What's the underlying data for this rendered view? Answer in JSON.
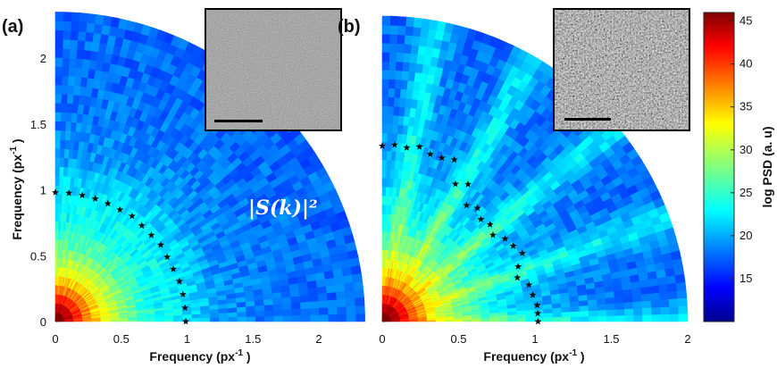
{
  "chart_data": [
    {
      "type": "heatmap",
      "panel_label": "(a)",
      "xlabel": "Frequency (px",
      "ylabel": "Frequency (px",
      "xticks": [
        "0",
        "0.5",
        "1",
        "1.5",
        "2"
      ],
      "yticks": [
        "0",
        "0.5",
        "1",
        "1.5",
        "2"
      ],
      "xlim": [
        0,
        2.35
      ],
      "ylim": [
        0,
        2.35
      ],
      "radius_max": 2.35,
      "annotation": "|S(k)|²",
      "star_markers": [
        {
          "angle_deg": 90,
          "r": 0.98
        },
        {
          "angle_deg": 84,
          "r": 0.98
        },
        {
          "angle_deg": 78,
          "r": 0.98
        },
        {
          "angle_deg": 72,
          "r": 0.98
        },
        {
          "angle_deg": 66,
          "r": 0.98
        },
        {
          "angle_deg": 60,
          "r": 0.98
        },
        {
          "angle_deg": 54,
          "r": 0.99
        },
        {
          "angle_deg": 48,
          "r": 0.98
        },
        {
          "angle_deg": 42,
          "r": 0.98
        },
        {
          "angle_deg": 36,
          "r": 0.99
        },
        {
          "angle_deg": 30,
          "r": 0.98
        },
        {
          "angle_deg": 24,
          "r": 0.98
        },
        {
          "angle_deg": 18,
          "r": 0.99
        },
        {
          "angle_deg": 12,
          "r": 0.99
        },
        {
          "angle_deg": 6,
          "r": 0.99
        },
        {
          "angle_deg": 0,
          "r": 0.99
        }
      ],
      "inset": "SEM micrograph, smooth surface, with scale bar"
    },
    {
      "type": "heatmap",
      "panel_label": "(b)",
      "xlabel": "Frequency (px",
      "xticks": [
        "0",
        "0.5",
        "1",
        "1.5",
        "2"
      ],
      "xlim": [
        0,
        2.0
      ],
      "ylim": [
        0,
        2.0
      ],
      "radius_max": 2.0,
      "star_markers": [
        {
          "angle_deg": 90,
          "r": 1.15
        },
        {
          "angle_deg": 86,
          "r": 1.16
        },
        {
          "angle_deg": 82,
          "r": 1.15
        },
        {
          "angle_deg": 78,
          "r": 1.17
        },
        {
          "angle_deg": 74,
          "r": 1.14
        },
        {
          "angle_deg": 70,
          "r": 1.14
        },
        {
          "angle_deg": 66,
          "r": 1.16
        },
        {
          "angle_deg": 62,
          "r": 1.02
        },
        {
          "angle_deg": 58,
          "r": 1.06
        },
        {
          "angle_deg": 54,
          "r": 0.94
        },
        {
          "angle_deg": 50,
          "r": 0.97
        },
        {
          "angle_deg": 46,
          "r": 0.93
        },
        {
          "angle_deg": 42,
          "r": 0.95
        },
        {
          "angle_deg": 38,
          "r": 0.92
        },
        {
          "angle_deg": 34,
          "r": 0.97
        },
        {
          "angle_deg": 30,
          "r": 0.99
        },
        {
          "angle_deg": 26,
          "r": 1.02
        },
        {
          "angle_deg": 22,
          "r": 0.96
        },
        {
          "angle_deg": 18,
          "r": 0.93
        },
        {
          "angle_deg": 14,
          "r": 0.99
        },
        {
          "angle_deg": 10,
          "r": 1.0
        },
        {
          "angle_deg": 6,
          "r": 1.02
        },
        {
          "angle_deg": 3,
          "r": 1.02
        },
        {
          "angle_deg": 0,
          "r": 1.02
        }
      ],
      "inset": "SEM micrograph, rough fibrous surface, with scale bar"
    }
  ],
  "colorbar": {
    "label": "log PSD (a. u)",
    "ticks": [
      "45",
      "40",
      "35",
      "30",
      "25",
      "20",
      "15"
    ],
    "range": [
      10,
      46
    ],
    "colormap": "jet"
  },
  "colors": {
    "background": "#ffffff",
    "stars": "#111111"
  }
}
